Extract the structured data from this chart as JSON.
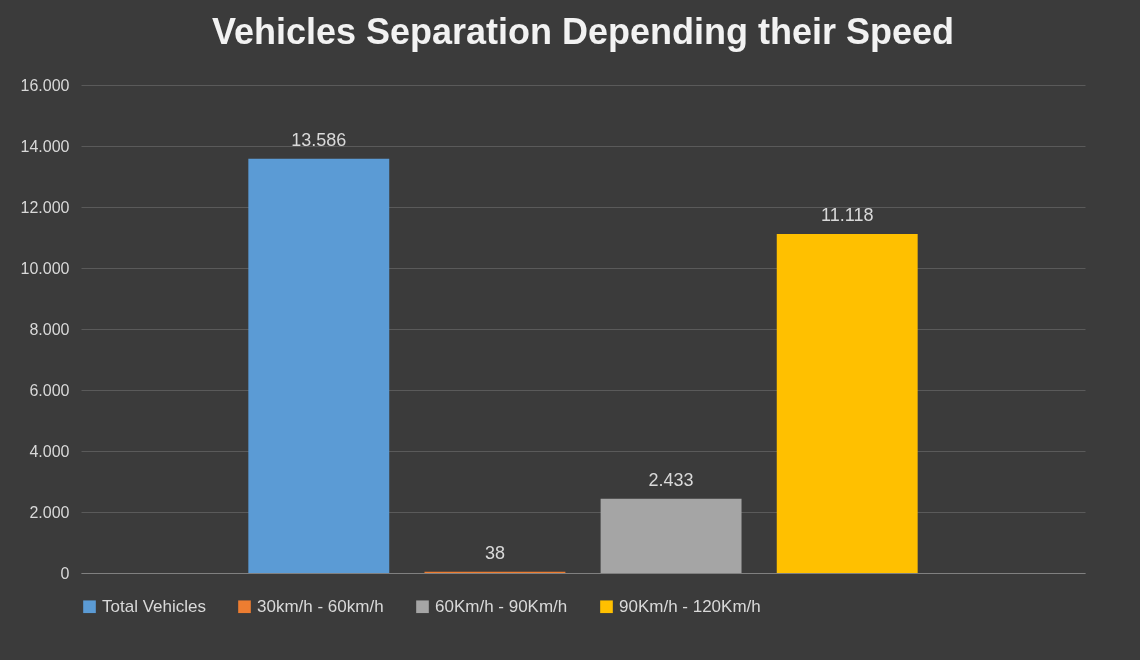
{
  "chart_data": {
    "type": "bar",
    "title": "Vehicles Separation Depending their Speed",
    "categories": [
      null
    ],
    "series": [
      {
        "name": "Total Vehicles",
        "color": "#5b9bd5",
        "values": [
          13586
        ],
        "value_labels": [
          "13.586"
        ]
      },
      {
        "name": "30km/h - 60km/h",
        "color": "#ed7d31",
        "values": [
          38
        ],
        "value_labels": [
          "38"
        ]
      },
      {
        "name": "60Km/h - 90Km/h",
        "color": "#a5a5a5",
        "values": [
          2433
        ],
        "value_labels": [
          "2.433"
        ]
      },
      {
        "name": "90Km/h - 120Km/h",
        "color": "#ffc000",
        "values": [
          11118
        ],
        "value_labels": [
          "11.118"
        ]
      }
    ],
    "ylim": [
      0,
      16000
    ],
    "yticks": [
      {
        "value": 0,
        "label": "0"
      },
      {
        "value": 2000,
        "label": "2.000"
      },
      {
        "value": 4000,
        "label": "4.000"
      },
      {
        "value": 6000,
        "label": "6.000"
      },
      {
        "value": 8000,
        "label": "8.000"
      },
      {
        "value": 10000,
        "label": "10.000"
      },
      {
        "value": 12000,
        "label": "12.000"
      },
      {
        "value": 14000,
        "label": "14.000"
      },
      {
        "value": 16000,
        "label": "16.000"
      }
    ],
    "grid": "y",
    "legend": "bottom",
    "tick_labels": "y"
  }
}
